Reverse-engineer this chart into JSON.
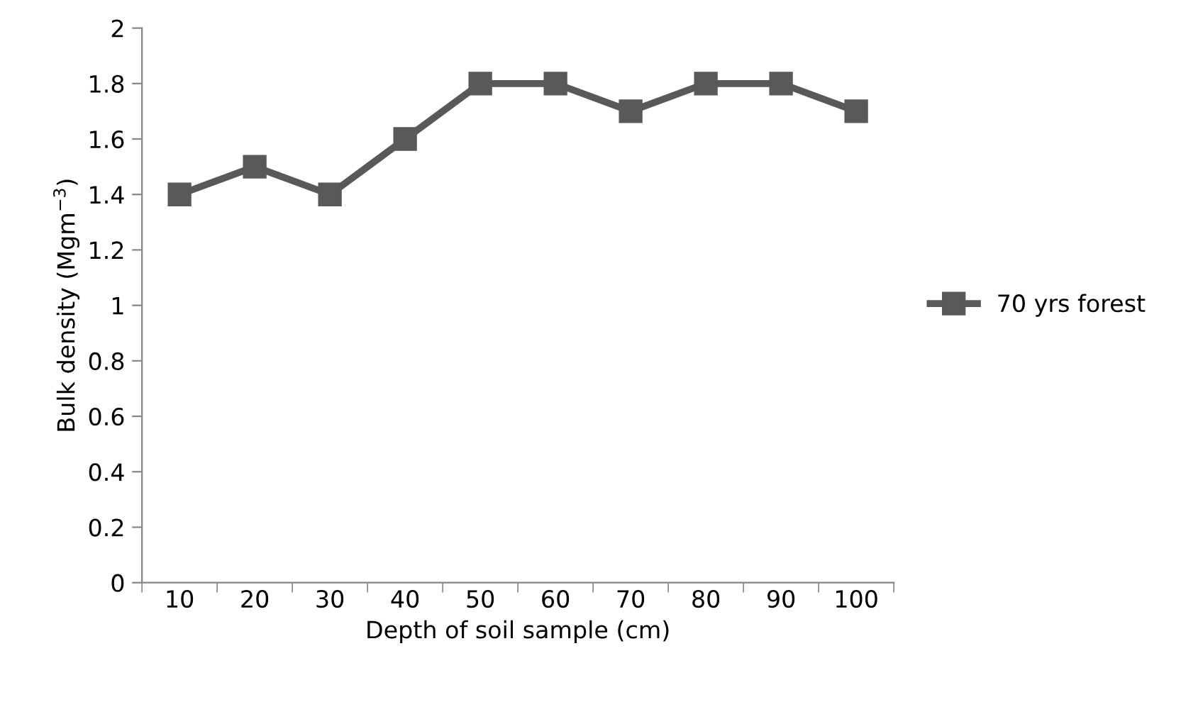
{
  "chart_data": {
    "type": "line",
    "xlabel": "Depth of soil sample (cm)",
    "ylabel": "Bulk density (Mgm$^{−3}$)",
    "categories": [
      "10",
      "20",
      "30",
      "40",
      "50",
      "60",
      "70",
      "80",
      "90",
      "100"
    ],
    "series": [
      {
        "name": "70 yrs forest",
        "color": "#595959",
        "values": [
          1.4,
          1.5,
          1.4,
          1.6,
          1.8,
          1.8,
          1.7,
          1.8,
          1.8,
          1.7
        ]
      }
    ],
    "ylim": [
      0,
      2
    ],
    "yticks": [
      0,
      0.2,
      0.4,
      0.6,
      0.8,
      1,
      1.2,
      1.4,
      1.6,
      1.8,
      2
    ],
    "grid": false,
    "legend": "right",
    "marker": "square",
    "line_style": "solid"
  }
}
